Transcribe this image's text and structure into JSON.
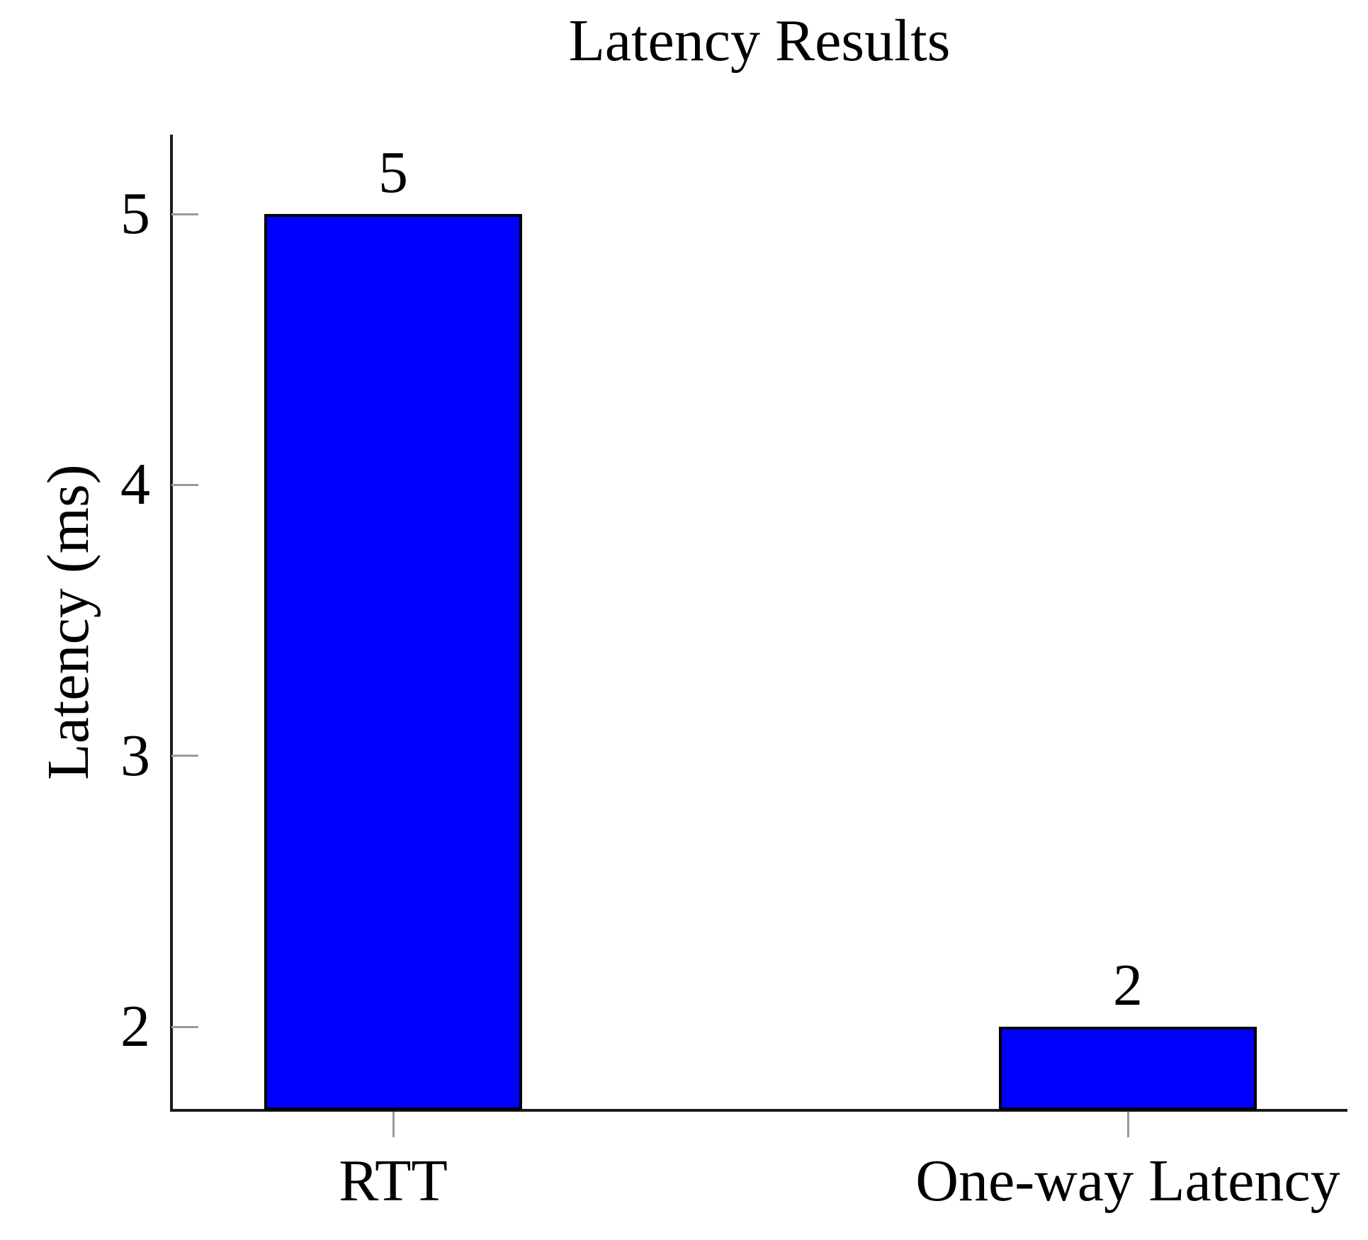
{
  "title": "Latency Results",
  "chart_data": {
    "type": "bar",
    "title": "Latency Results",
    "xlabel": "",
    "ylabel": "Latency (ms)",
    "categories": [
      "RTT",
      "One-way Latency"
    ],
    "values": [
      5,
      2
    ],
    "value_labels": [
      "5",
      "2"
    ],
    "yticks": [
      2,
      3,
      4,
      5
    ],
    "ytick_labels": [
      "2",
      "3",
      "4",
      "5"
    ],
    "ylim": [
      1.69,
      5.3
    ],
    "grid": false,
    "legend": false,
    "bar_fill_color": "#0000ff",
    "bar_border_color": "#000000",
    "axis_color": "#1c1c1c",
    "tick_color": "#9a9a9a",
    "text_color": "#000000",
    "background_color": "#ffffff"
  }
}
